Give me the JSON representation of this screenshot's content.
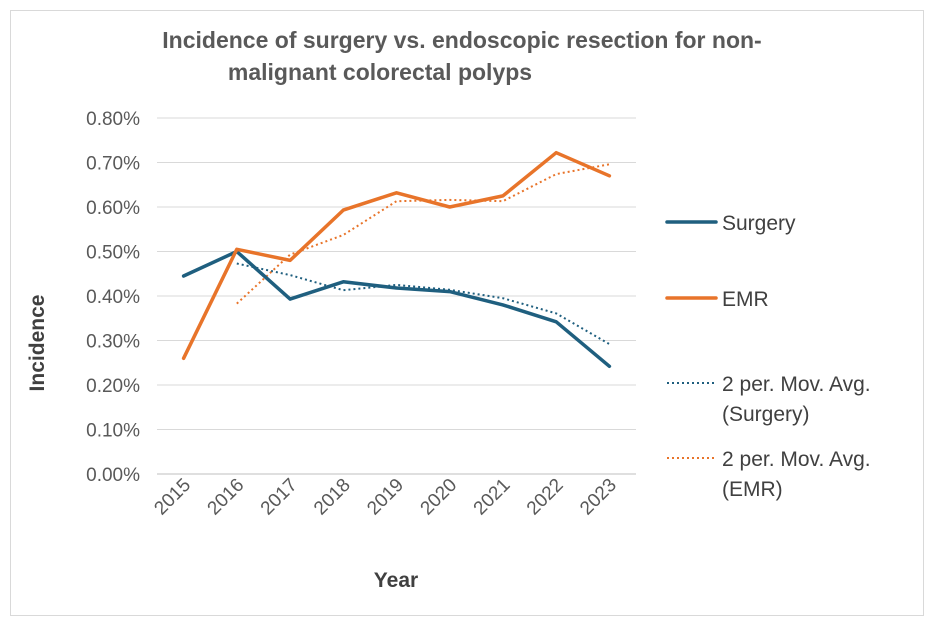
{
  "chart_data": {
    "type": "line",
    "title_lines": [
      "Incidence of surgery vs. endoscopic resection for non-",
      "malignant colorectal polyps"
    ],
    "xlabel": "Year",
    "ylabel": "Incidence",
    "categories": [
      "2015",
      "2016",
      "2017",
      "2018",
      "2019",
      "2020",
      "2021",
      "2022",
      "2023"
    ],
    "ylim": [
      0,
      0.8
    ],
    "yticks": [
      "0.00%",
      "0.10%",
      "0.20%",
      "0.30%",
      "0.40%",
      "0.50%",
      "0.60%",
      "0.70%",
      "0.80%"
    ],
    "grid": true,
    "legend_position": "right",
    "series": [
      {
        "name": "Surgery",
        "style": "solid",
        "color": "#1f5f7f",
        "values": [
          0.445,
          0.5,
          0.393,
          0.432,
          0.418,
          0.41,
          0.38,
          0.342,
          0.242
        ]
      },
      {
        "name": "EMR",
        "style": "solid",
        "color": "#e8742a",
        "values": [
          0.26,
          0.505,
          0.48,
          0.593,
          0.632,
          0.6,
          0.625,
          0.722,
          0.67
        ]
      },
      {
        "name": "2 per. Mov. Avg. (Surgery)",
        "legend_lines": [
          "2 per. Mov. Avg.",
          "(Surgery)"
        ],
        "style": "dotted",
        "color": "#1f5f7f",
        "values": [
          null,
          0.473,
          0.447,
          0.413,
          0.425,
          0.414,
          0.395,
          0.361,
          0.292
        ]
      },
      {
        "name": "2 per. Mov. Avg. (EMR)",
        "legend_lines": [
          "2 per. Mov. Avg.",
          "(EMR)"
        ],
        "style": "dotted",
        "color": "#e8742a",
        "values": [
          null,
          0.383,
          0.493,
          0.537,
          0.613,
          0.616,
          0.613,
          0.674,
          0.696
        ]
      }
    ]
  }
}
